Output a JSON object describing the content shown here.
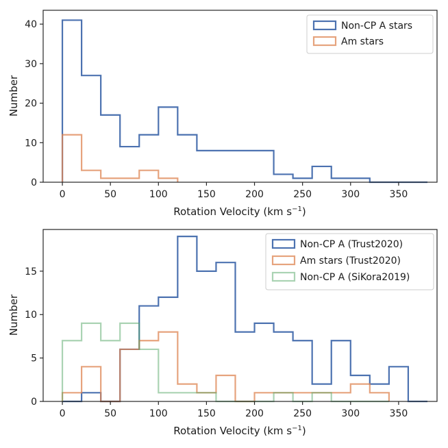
{
  "chart_data": [
    {
      "type": "histogram",
      "title": "",
      "xlabel": "Rotation Velocity (km s",
      "xlabel_sup": "−1",
      "xlabel_close": ")",
      "ylabel": "Number",
      "xlim": [
        -20,
        390
      ],
      "ylim": [
        0,
        43.5
      ],
      "xticks": [
        0,
        50,
        100,
        150,
        200,
        250,
        300,
        350
      ],
      "yticks": [
        0,
        10,
        20,
        30,
        40
      ],
      "bin_width": 20,
      "legend_position": "top-right",
      "series": [
        {
          "name": "Non-CP A stars",
          "color": "#4c72b0",
          "alpha": 1,
          "edges": [
            0,
            20,
            40,
            60,
            80,
            100,
            120,
            140,
            160,
            180,
            200,
            220,
            240,
            260,
            280,
            300,
            320,
            340,
            360,
            380
          ],
          "values": [
            41,
            27,
            17,
            9,
            12,
            19,
            12,
            8,
            8,
            8,
            8,
            2,
            1,
            4,
            1,
            1,
            0,
            0,
            0
          ]
        },
        {
          "name": "Am stars",
          "color": "#dd8452",
          "alpha": 0.75,
          "edges": [
            0,
            20,
            40,
            60,
            80,
            100,
            120
          ],
          "values": [
            12,
            3,
            1,
            1,
            3,
            1
          ]
        }
      ]
    },
    {
      "type": "histogram",
      "title": "",
      "xlabel": "Rotation Velocity (km s",
      "xlabel_sup": "−1",
      "xlabel_close": ")",
      "ylabel": "Number",
      "xlim": [
        -20,
        390
      ],
      "ylim": [
        0,
        19.8
      ],
      "xticks": [
        0,
        50,
        100,
        150,
        200,
        250,
        300,
        350
      ],
      "yticks": [
        0,
        5,
        10,
        15
      ],
      "bin_width": 20,
      "legend_position": "top-right",
      "series": [
        {
          "name": "Non-CP A (Trust2020)",
          "color": "#4c72b0",
          "alpha": 1,
          "edges": [
            0,
            20,
            40,
            60,
            80,
            100,
            120,
            140,
            160,
            180,
            200,
            220,
            240,
            260,
            280,
            300,
            320,
            340,
            360,
            380
          ],
          "values": [
            0,
            1,
            0,
            6,
            11,
            12,
            19,
            15,
            16,
            8,
            9,
            8,
            7,
            2,
            7,
            3,
            2,
            4,
            0
          ]
        },
        {
          "name": "Am stars (Trust2020)",
          "color": "#dd8452",
          "alpha": 0.75,
          "edges": [
            0,
            20,
            40,
            60,
            80,
            100,
            120,
            140,
            160,
            180,
            200,
            220,
            240,
            260,
            280,
            300,
            320,
            340
          ],
          "values": [
            1,
            4,
            0,
            6,
            7,
            8,
            2,
            1,
            3,
            0,
            1,
            1,
            1,
            1,
            1,
            2,
            1
          ]
        },
        {
          "name": "Non-CP A (SiKora2019)",
          "color": "#55a868",
          "alpha": 0.5,
          "edges": [
            0,
            20,
            40,
            60,
            80,
            100,
            120,
            140,
            160,
            180,
            200,
            220,
            240,
            260,
            280,
            300,
            320,
            340
          ],
          "values": [
            7,
            9,
            7,
            9,
            6,
            1,
            1,
            1,
            0,
            0,
            0,
            1,
            0,
            1,
            0,
            0,
            0
          ]
        }
      ]
    }
  ]
}
